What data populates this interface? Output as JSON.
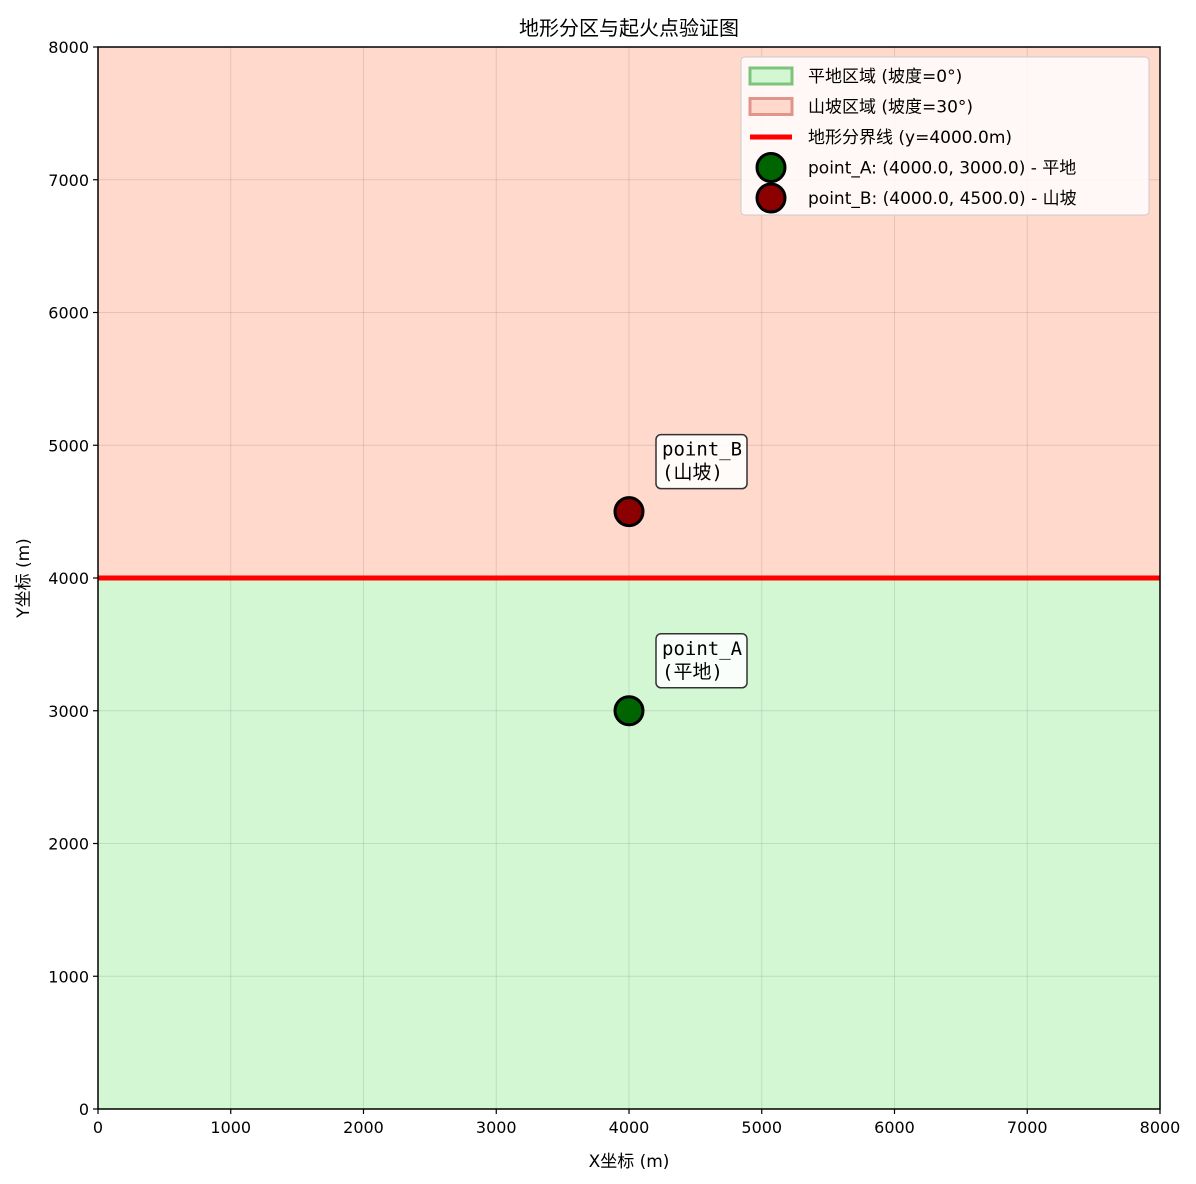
{
  "chart_data": {
    "type": "scatter",
    "title": "地形分区与起火点验证图",
    "xlabel": "X坐标 (m)",
    "ylabel": "Y坐标 (m)",
    "xlim": [
      0,
      8000
    ],
    "ylim": [
      0,
      8000
    ],
    "xticks": [
      0,
      1000,
      2000,
      3000,
      4000,
      5000,
      6000,
      7000,
      8000
    ],
    "yticks": [
      0,
      1000,
      2000,
      3000,
      4000,
      5000,
      6000,
      7000,
      8000
    ],
    "grid": true,
    "legend_position": "top-right",
    "regions": [
      {
        "legend": "平地区域 (坡度=0°)",
        "y_from": 0,
        "y_to": 4000,
        "fill": "#d3f7d3",
        "edge": "#7cc47c"
      },
      {
        "legend": "山坡区域 (坡度=30°)",
        "y_from": 4000,
        "y_to": 8000,
        "fill": "#ffd9cc",
        "edge": "#e0948a"
      }
    ],
    "boundary": {
      "legend": "地形分界线 (y=4000.0m)",
      "y": 4000,
      "color": "#ff0000"
    },
    "points": [
      {
        "legend": "point_A: (4000.0, 3000.0) - 平地",
        "x": 4000,
        "y": 3000,
        "color": "#006400",
        "annotation_line1": "point_A",
        "annotation_line2": "(平地)"
      },
      {
        "legend": "point_B: (4000.0, 4500.0) - 山坡",
        "x": 4000,
        "y": 4500,
        "color": "#8b0000",
        "annotation_line1": "point_B",
        "annotation_line2": "(山坡)"
      }
    ]
  }
}
